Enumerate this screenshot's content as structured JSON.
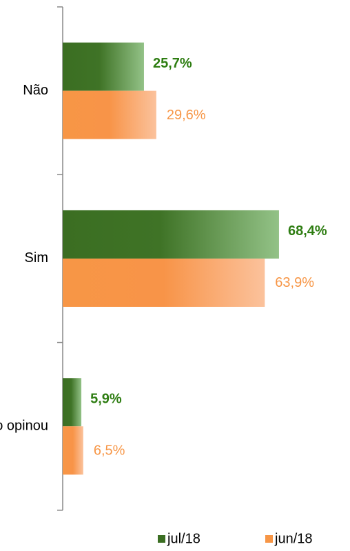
{
  "chart_data": {
    "type": "bar",
    "orientation": "horizontal",
    "categories": [
      "Não",
      "Sim",
      "Não opinou"
    ],
    "series": [
      {
        "name": "jul/18",
        "color": "#3b6e22",
        "values": [
          25.7,
          68.4,
          5.9
        ],
        "value_labels": [
          "25,7%",
          "68,4%",
          "5,9%"
        ]
      },
      {
        "name": "jun/18",
        "color": "#f79646",
        "values": [
          29.6,
          63.9,
          6.5
        ],
        "value_labels": [
          "29,6%",
          "63,9%",
          "6,5%"
        ]
      }
    ]
  }
}
